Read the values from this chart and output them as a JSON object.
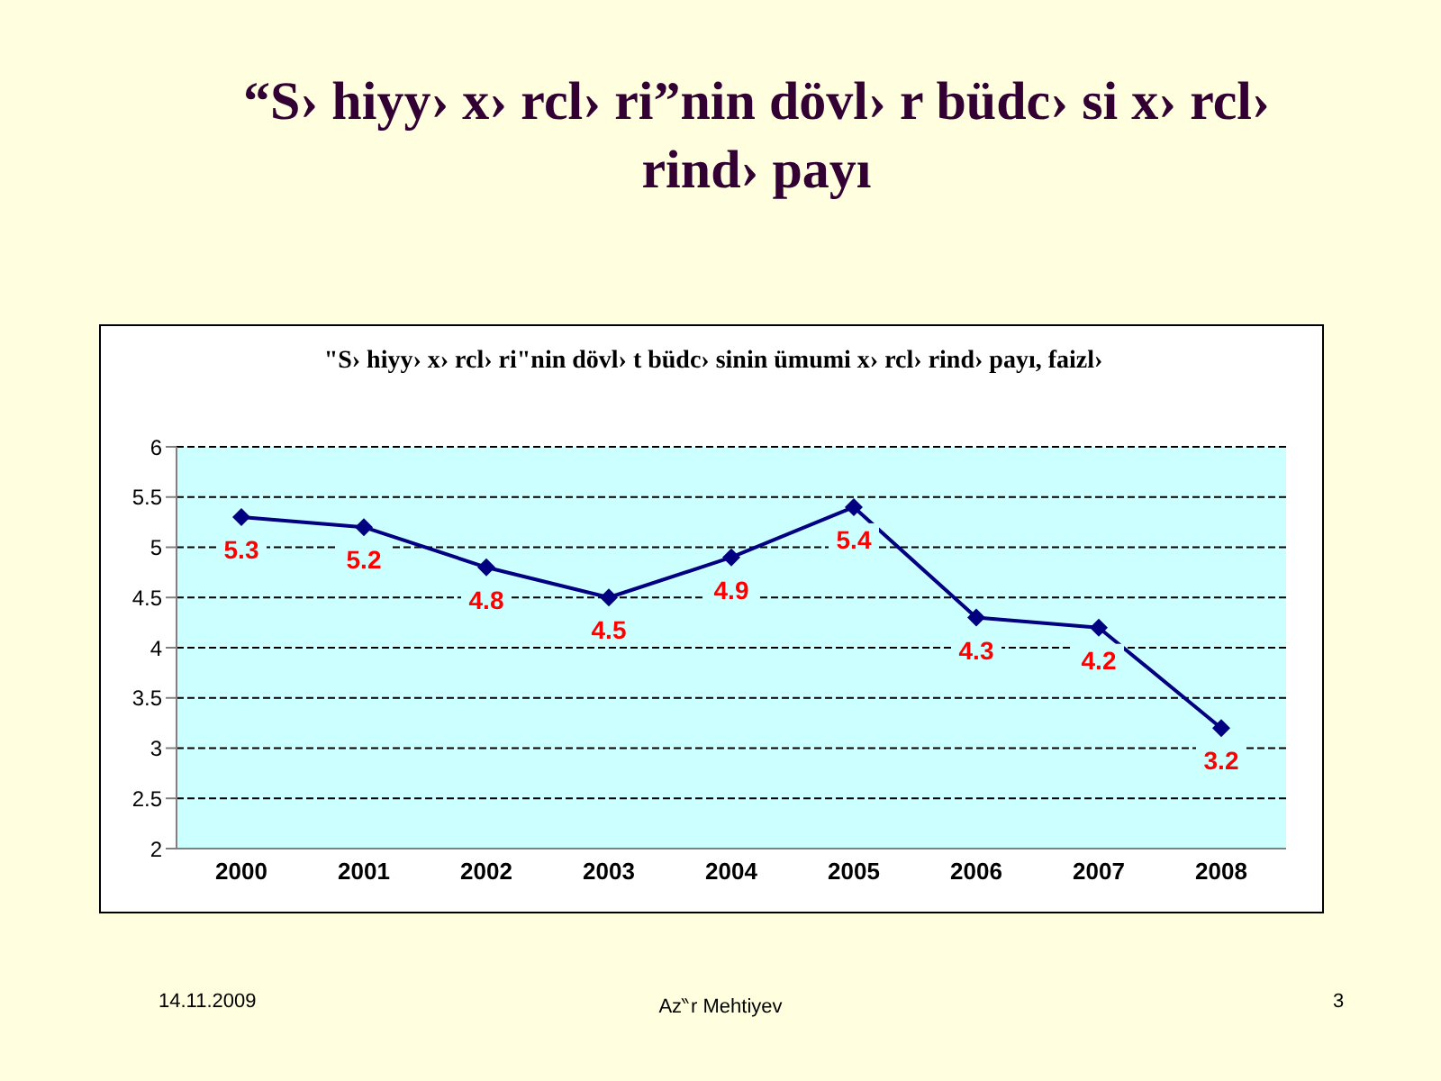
{
  "chart_data": {
    "type": "line",
    "title": "“S› hiyy›  x› rcl› ri”nin dövl› r büdc› si x› rcl› rind›  payı",
    "subtitle": "\"S› hiyy›  x› rcl› ri\"nin dövl› t büdc› sinin ümumi x› rcl› rind›  payı, faizl›",
    "categories": [
      "2000",
      "2001",
      "2002",
      "2003",
      "2004",
      "2005",
      "2006",
      "2007",
      "2008"
    ],
    "series": [
      {
        "color": "#000080",
        "values": [
          5.3,
          5.2,
          4.8,
          4.5,
          4.9,
          5.4,
          4.3,
          4.2,
          3.2
        ]
      }
    ],
    "ylim": [
      2,
      6
    ],
    "yticks": [
      2,
      2.5,
      3,
      3.5,
      4,
      4.5,
      5,
      5.5,
      6
    ],
    "grid": "y",
    "marker": "diamond",
    "line_style": "solid",
    "data_labels": true,
    "legend": false,
    "annotations": [
      "14.11.2009",
      "Az‶r Mehtiyev",
      "3"
    ]
  }
}
